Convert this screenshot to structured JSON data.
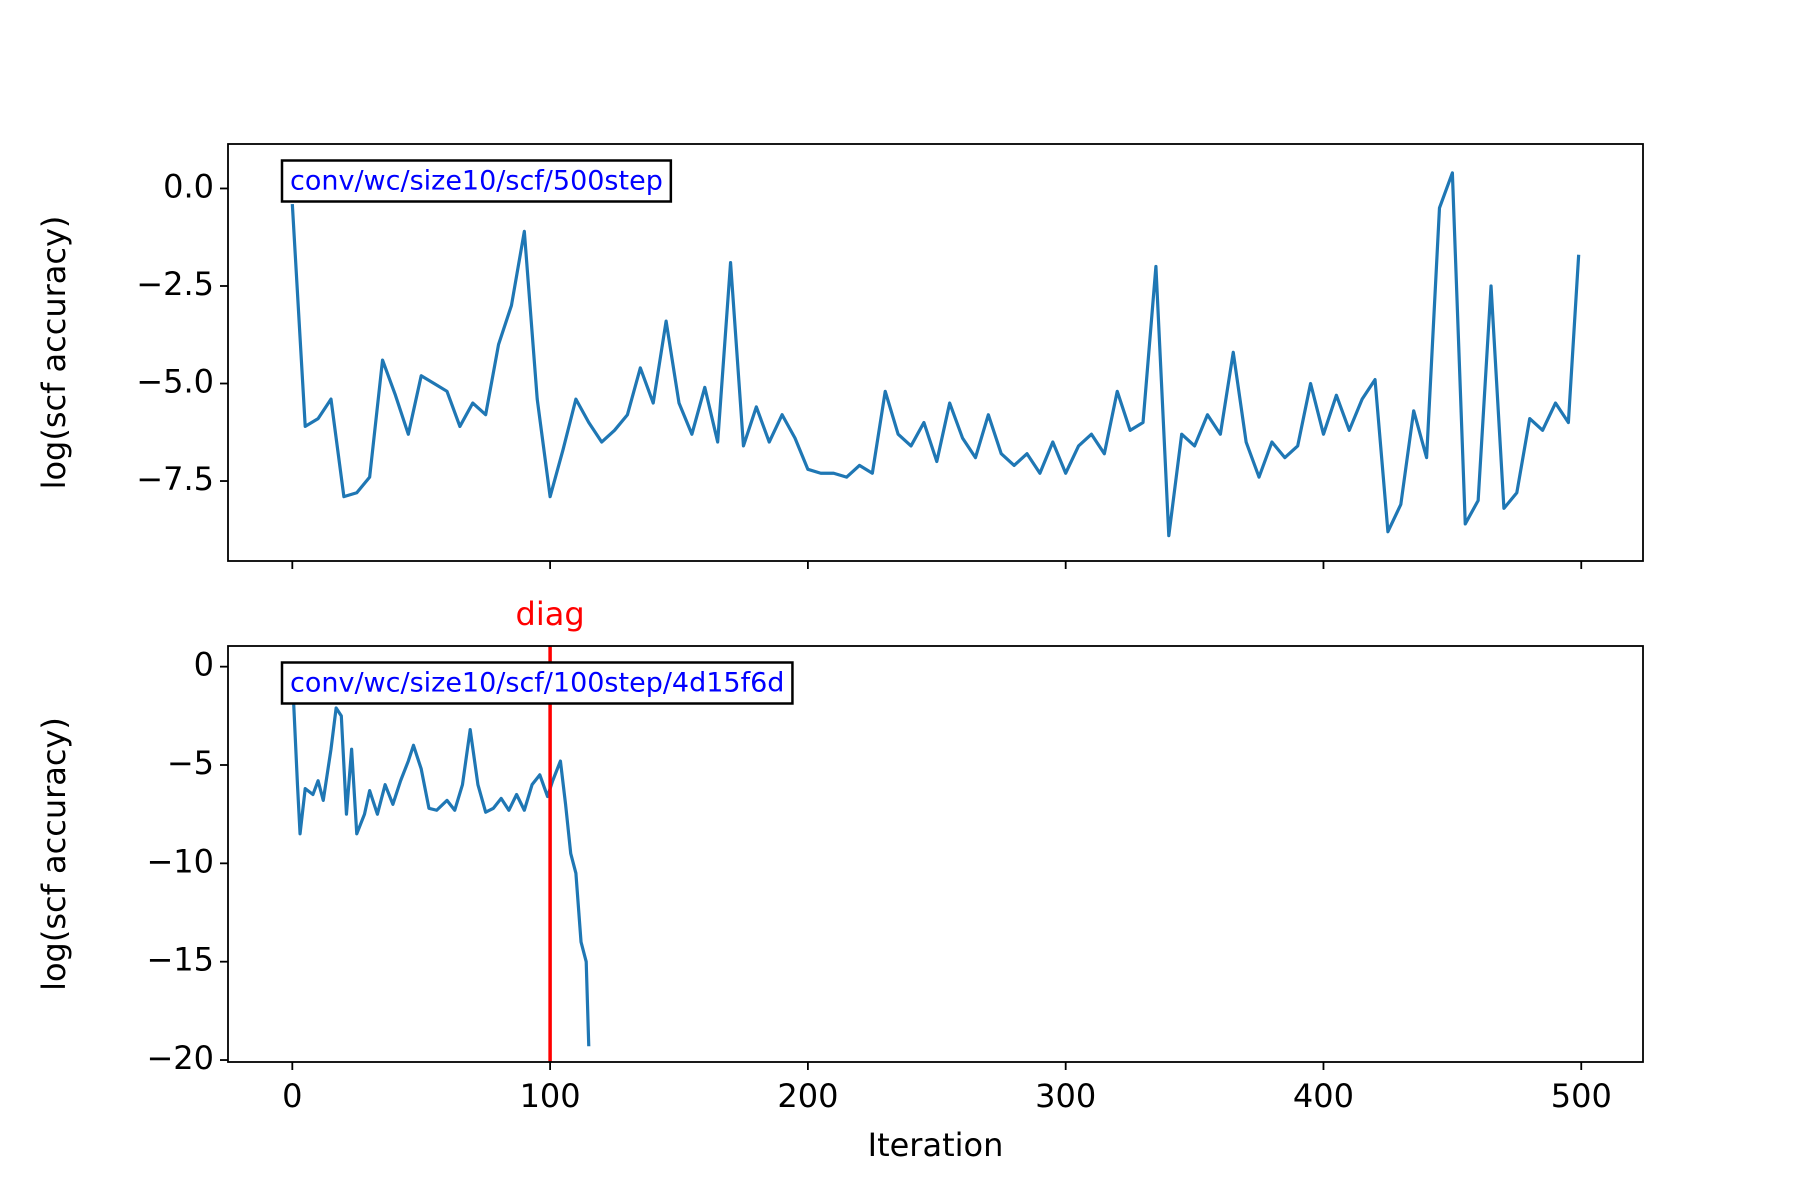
{
  "chart_data": [
    {
      "type": "line",
      "ylabel": "log(scf accuracy)",
      "annotation": "conv/wc/size10/scf/500step",
      "color": "#1f77b4",
      "x": [
        0,
        5,
        10,
        15,
        20,
        25,
        30,
        35,
        40,
        45,
        50,
        55,
        60,
        65,
        70,
        75,
        80,
        85,
        90,
        95,
        100,
        105,
        110,
        115,
        120,
        125,
        130,
        135,
        140,
        145,
        150,
        155,
        160,
        165,
        170,
        175,
        180,
        185,
        190,
        195,
        200,
        205,
        210,
        215,
        220,
        225,
        230,
        235,
        240,
        245,
        250,
        255,
        260,
        265,
        270,
        275,
        280,
        285,
        290,
        295,
        300,
        305,
        310,
        315,
        320,
        325,
        330,
        335,
        340,
        345,
        350,
        355,
        360,
        365,
        370,
        375,
        380,
        385,
        390,
        395,
        400,
        405,
        410,
        415,
        420,
        425,
        430,
        435,
        440,
        445,
        450,
        455,
        460,
        465,
        470,
        475,
        480,
        485,
        490,
        495,
        499
      ],
      "values": [
        -0.4,
        -6.1,
        -5.9,
        -5.4,
        -7.9,
        -7.8,
        -7.4,
        -4.4,
        -5.3,
        -6.3,
        -4.8,
        -5.0,
        -5.2,
        -6.1,
        -5.5,
        -5.8,
        -4.0,
        -3.0,
        -1.1,
        -5.4,
        -7.9,
        -6.7,
        -5.4,
        -6.0,
        -6.5,
        -6.2,
        -5.8,
        -4.6,
        -5.5,
        -3.4,
        -5.5,
        -6.3,
        -5.1,
        -6.5,
        -1.9,
        -6.6,
        -5.6,
        -6.5,
        -5.8,
        -6.4,
        -7.2,
        -7.3,
        -7.3,
        -7.4,
        -7.1,
        -7.3,
        -5.2,
        -6.3,
        -6.6,
        -6.0,
        -7.0,
        -5.5,
        -6.4,
        -6.9,
        -5.8,
        -6.8,
        -7.1,
        -6.8,
        -7.3,
        -6.5,
        -7.3,
        -6.6,
        -6.3,
        -6.8,
        -5.2,
        -6.2,
        -6.0,
        -2.0,
        -8.9,
        -6.3,
        -6.6,
        -5.8,
        -6.3,
        -4.2,
        -6.5,
        -7.4,
        -6.5,
        -6.9,
        -6.6,
        -5.0,
        -6.3,
        -5.3,
        -6.2,
        -5.4,
        -4.9,
        -8.8,
        -8.1,
        -5.7,
        -6.9,
        -0.5,
        0.4,
        -8.6,
        -8.0,
        -2.5,
        -8.2,
        -7.8,
        -5.9,
        -6.2,
        -5.5,
        -6.0,
        -1.7
      ],
      "xlim": [
        -24.95,
        523.95
      ],
      "xticks": [
        0,
        100,
        200,
        300,
        400,
        500
      ],
      "ylim": [
        -9.55,
        1.14
      ],
      "yticks": [
        {
          "value": 0,
          "label": "0.0"
        },
        {
          "value": -2.5,
          "label": "−2.5"
        },
        {
          "value": -5,
          "label": "−5.0"
        },
        {
          "value": -7.5,
          "label": "−7.5"
        }
      ]
    },
    {
      "type": "line",
      "ylabel": "log(scf accuracy)",
      "xlabel": "Iteration",
      "annotation": "conv/wc/size10/scf/100step/4d15f6d",
      "color": "#1f77b4",
      "x": [
        0,
        2,
        3,
        5,
        8,
        10,
        12,
        15,
        17,
        19,
        21,
        23,
        25,
        28,
        30,
        33,
        36,
        39,
        42,
        45,
        47,
        50,
        53,
        56,
        60,
        63,
        66,
        69,
        72,
        75,
        78,
        81,
        84,
        87,
        90,
        93,
        96,
        99,
        101,
        104,
        106,
        108,
        110,
        112,
        114,
        115
      ],
      "values": [
        -0.4,
        -6.0,
        -8.5,
        -6.2,
        -6.5,
        -5.8,
        -6.8,
        -4.2,
        -2.1,
        -2.5,
        -7.5,
        -4.2,
        -8.5,
        -7.5,
        -6.3,
        -7.5,
        -6.0,
        -7.0,
        -5.8,
        -4.8,
        -4.0,
        -5.2,
        -7.2,
        -7.3,
        -6.8,
        -7.3,
        -6.0,
        -3.2,
        -6.0,
        -7.4,
        -7.2,
        -6.7,
        -7.3,
        -6.5,
        -7.3,
        -6.0,
        -5.5,
        -6.6,
        -5.8,
        -4.8,
        -7.0,
        -9.5,
        -10.5,
        -14.0,
        -15.0,
        -19.3
      ],
      "vline": {
        "x": 100,
        "label": "diag",
        "color": "red"
      },
      "xlim": [
        -24.95,
        523.95
      ],
      "xticks": [
        0,
        100,
        200,
        300,
        400,
        500
      ],
      "ylim": [
        -20.1,
        1.05
      ],
      "yticks": [
        0,
        {
          "value": -5,
          "label": "−5"
        },
        {
          "value": -10,
          "label": "−10"
        },
        {
          "value": -15,
          "label": "−15"
        },
        {
          "value": -20,
          "label": "−20"
        }
      ]
    }
  ]
}
